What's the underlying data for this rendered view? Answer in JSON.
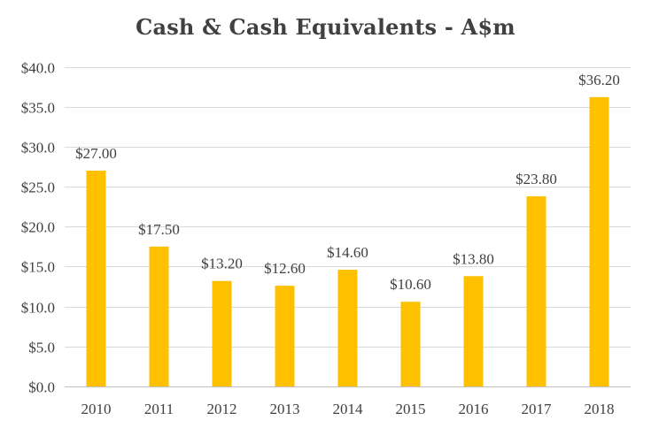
{
  "chart_data": {
    "type": "bar",
    "title": "Cash & Cash Equivalents - A$m",
    "categories": [
      "2010",
      "2011",
      "2012",
      "2013",
      "2014",
      "2015",
      "2016",
      "2017",
      "2018"
    ],
    "values": [
      27.0,
      17.5,
      13.2,
      12.6,
      14.6,
      10.6,
      13.8,
      23.8,
      36.2
    ],
    "data_labels": [
      "$27.00",
      "$17.50",
      "$13.20",
      "$12.60",
      "$14.60",
      "$10.60",
      "$13.80",
      "$23.80",
      "$36.20"
    ],
    "y_ticks": [
      0,
      5,
      10,
      15,
      20,
      25,
      30,
      35,
      40
    ],
    "y_tick_labels": [
      "$0.0",
      "$5.0",
      "$10.0",
      "$15.0",
      "$20.0",
      "$25.0",
      "$30.0",
      "$35.0",
      "$40.0"
    ],
    "ylim": [
      0,
      40
    ],
    "xlabel": "",
    "ylabel": "",
    "grid": "horizontal",
    "legend": "none",
    "bar_color": "#FFC000",
    "grid_color": "#D9D9D9",
    "text_color": "#404040"
  }
}
